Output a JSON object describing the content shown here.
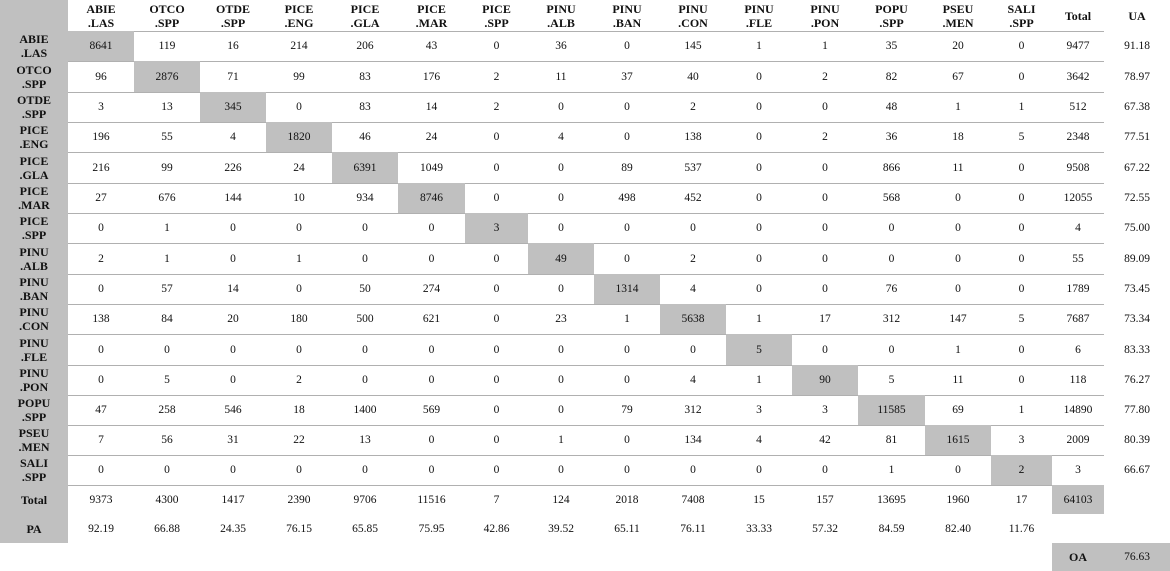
{
  "table": {
    "columns": [
      "ABIE\n.LAS",
      "OTCO\n.SPP",
      "OTDE\n.SPP",
      "PICE\n.ENG",
      "PICE\n.GLA",
      "PICE\n.MAR",
      "PICE\n.SPP",
      "PINU\n.ALB",
      "PINU\n.BAN",
      "PINU\n.CON",
      "PINU\n.FLE",
      "PINU\n.PON",
      "POPU\n.SPP",
      "PSEU\n.MEN",
      "SALI\n.SPP",
      "Total",
      "UA"
    ],
    "rows": [
      {
        "label": "ABIE\n.LAS",
        "values": [
          "8641",
          "119",
          "16",
          "214",
          "206",
          "43",
          "0",
          "36",
          "0",
          "145",
          "1",
          "1",
          "35",
          "20",
          "0",
          "9477",
          "91.18"
        ]
      },
      {
        "label": "OTCO\n.SPP",
        "values": [
          "96",
          "2876",
          "71",
          "99",
          "83",
          "176",
          "2",
          "11",
          "37",
          "40",
          "0",
          "2",
          "82",
          "67",
          "0",
          "3642",
          "78.97"
        ]
      },
      {
        "label": "OTDE\n.SPP",
        "values": [
          "3",
          "13",
          "345",
          "0",
          "83",
          "14",
          "2",
          "0",
          "0",
          "2",
          "0",
          "0",
          "48",
          "1",
          "1",
          "512",
          "67.38"
        ]
      },
      {
        "label": "PICE\n.ENG",
        "values": [
          "196",
          "55",
          "4",
          "1820",
          "46",
          "24",
          "0",
          "4",
          "0",
          "138",
          "0",
          "2",
          "36",
          "18",
          "5",
          "2348",
          "77.51"
        ]
      },
      {
        "label": "PICE\n.GLA",
        "values": [
          "216",
          "99",
          "226",
          "24",
          "6391",
          "1049",
          "0",
          "0",
          "89",
          "537",
          "0",
          "0",
          "866",
          "11",
          "0",
          "9508",
          "67.22"
        ]
      },
      {
        "label": "PICE\n.MAR",
        "values": [
          "27",
          "676",
          "144",
          "10",
          "934",
          "8746",
          "0",
          "0",
          "498",
          "452",
          "0",
          "0",
          "568",
          "0",
          "0",
          "12055",
          "72.55"
        ]
      },
      {
        "label": "PICE\n.SPP",
        "values": [
          "0",
          "1",
          "0",
          "0",
          "0",
          "0",
          "3",
          "0",
          "0",
          "0",
          "0",
          "0",
          "0",
          "0",
          "0",
          "4",
          "75.00"
        ]
      },
      {
        "label": "PINU\n.ALB",
        "values": [
          "2",
          "1",
          "0",
          "1",
          "0",
          "0",
          "0",
          "49",
          "0",
          "2",
          "0",
          "0",
          "0",
          "0",
          "0",
          "55",
          "89.09"
        ]
      },
      {
        "label": "PINU\n.BAN",
        "values": [
          "0",
          "57",
          "14",
          "0",
          "50",
          "274",
          "0",
          "0",
          "1314",
          "4",
          "0",
          "0",
          "76",
          "0",
          "0",
          "1789",
          "73.45"
        ]
      },
      {
        "label": "PINU\n.CON",
        "values": [
          "138",
          "84",
          "20",
          "180",
          "500",
          "621",
          "0",
          "23",
          "1",
          "5638",
          "1",
          "17",
          "312",
          "147",
          "5",
          "7687",
          "73.34"
        ]
      },
      {
        "label": "PINU\n.FLE",
        "values": [
          "0",
          "0",
          "0",
          "0",
          "0",
          "0",
          "0",
          "0",
          "0",
          "0",
          "5",
          "0",
          "0",
          "1",
          "0",
          "6",
          "83.33"
        ]
      },
      {
        "label": "PINU\n.PON",
        "values": [
          "0",
          "5",
          "0",
          "2",
          "0",
          "0",
          "0",
          "0",
          "0",
          "4",
          "1",
          "90",
          "5",
          "11",
          "0",
          "118",
          "76.27"
        ]
      },
      {
        "label": "POPU\n.SPP",
        "values": [
          "47",
          "258",
          "546",
          "18",
          "1400",
          "569",
          "0",
          "0",
          "79",
          "312",
          "3",
          "3",
          "11585",
          "69",
          "1",
          "14890",
          "77.80"
        ]
      },
      {
        "label": "PSEU\n.MEN",
        "values": [
          "7",
          "56",
          "31",
          "22",
          "13",
          "0",
          "0",
          "1",
          "0",
          "134",
          "4",
          "42",
          "81",
          "1615",
          "3",
          "2009",
          "80.39"
        ]
      },
      {
        "label": "SALI\n.SPP",
        "values": [
          "0",
          "0",
          "0",
          "0",
          "0",
          "0",
          "0",
          "0",
          "0",
          "0",
          "0",
          "0",
          "1",
          "0",
          "2",
          "3",
          "66.67"
        ]
      },
      {
        "label": "Total",
        "values": [
          "9373",
          "4300",
          "1417",
          "2390",
          "9706",
          "11516",
          "7",
          "124",
          "2018",
          "7408",
          "15",
          "157",
          "13695",
          "1960",
          "17",
          "64103",
          ""
        ]
      },
      {
        "label": "PA",
        "values": [
          "92.19",
          "66.88",
          "24.35",
          "76.15",
          "65.85",
          "75.95",
          "42.86",
          "39.52",
          "65.11",
          "76.11",
          "33.33",
          "57.32",
          "84.59",
          "82.40",
          "11.76",
          "",
          ""
        ]
      }
    ],
    "oa_label": "OA",
    "oa_value": "76.63"
  },
  "colors": {
    "highlight": "#c0c0c0",
    "rule": "#b0b0b0"
  }
}
